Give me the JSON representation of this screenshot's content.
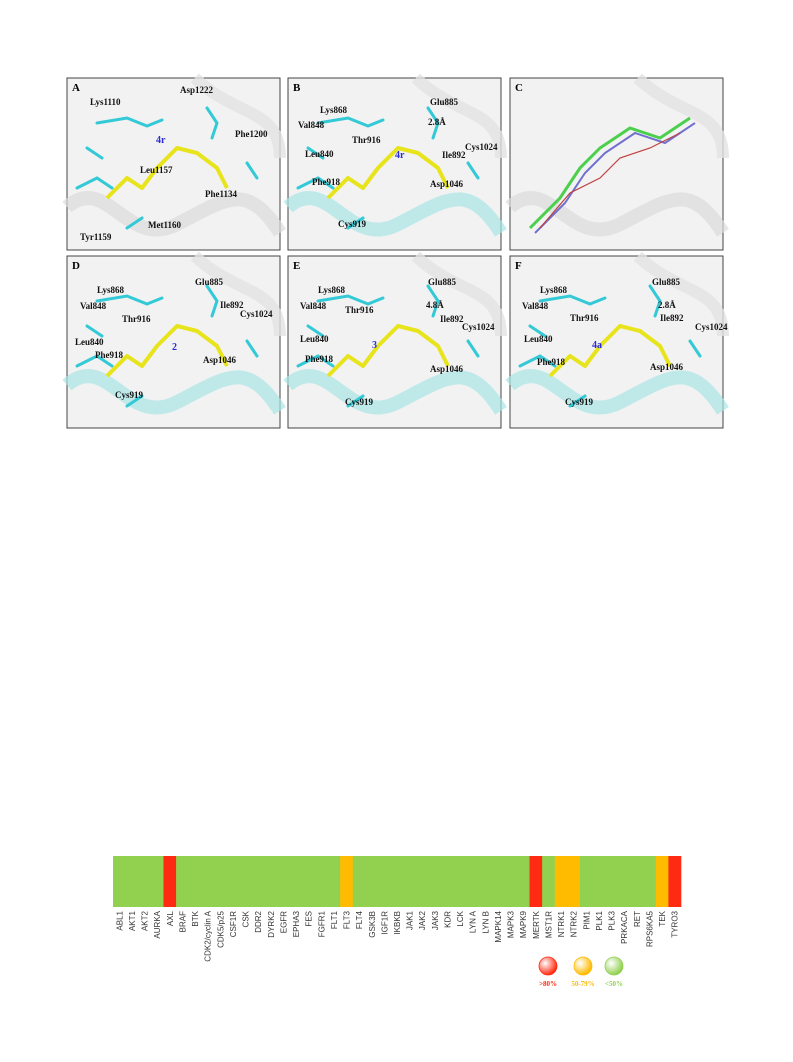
{
  "panels": [
    {
      "letter": "A",
      "ligand": "4r",
      "labels": [
        "Lys1110",
        "Asp1222",
        "Phe1200",
        "Leu1157",
        "Phe1134",
        "Tyr1159",
        "Met1160"
      ]
    },
    {
      "letter": "B",
      "ligand": "4r",
      "labels": [
        "Glu885",
        "Lys868",
        "Val848",
        "2.8Å",
        "Thr916",
        "Leu840",
        "Ile892",
        "Cys1024",
        "Phe918",
        "Asp1046",
        "Cys919"
      ]
    },
    {
      "letter": "C",
      "ligand": null,
      "labels": []
    },
    {
      "letter": "D",
      "ligand": "2",
      "labels": [
        "Glu885",
        "Lys868",
        "Val848",
        "Ile892",
        "Thr916",
        "Cys1024",
        "Leu840",
        "Phe918",
        "Asp1046",
        "Cys919"
      ]
    },
    {
      "letter": "E",
      "ligand": "3",
      "labels": [
        "Glu885",
        "Lys868",
        "Val848",
        "Thr916",
        "4.8Å",
        "Ile892",
        "Cys1024",
        "Leu840",
        "Phe918",
        "Asp1046",
        "Cys919"
      ]
    },
    {
      "letter": "F",
      "ligand": "4a",
      "labels": [
        "Glu885",
        "Lys868",
        "2.8Å",
        "Val848",
        "Thr916",
        "Ile892",
        "Cys1024",
        "Leu840",
        "Phe918",
        "Asp1046",
        "Cys919"
      ]
    }
  ],
  "heatmap": {
    "kinases": [
      "ABL1",
      "AKT1",
      "AKT2",
      "AURKA",
      "AXL",
      "BRAF",
      "BTK",
      "CDK2/cyclin A",
      "CDK5/p25",
      "CSF1R",
      "CSK",
      "DDR2",
      "DYRK2",
      "EGFR",
      "EPHA3",
      "FES",
      "FGFR1",
      "FLT1",
      "FLT3",
      "FLT4",
      "GSK3B",
      "IGF1R",
      "IKBKB",
      "JAK1",
      "JAK2",
      "JAK3",
      "KDR",
      "LCK",
      "LYN A",
      "LYN B",
      "MAPK14",
      "MAPK3",
      "MAPK9",
      "MERTK",
      "MST1R",
      "NTRK1",
      "NTRK2",
      "PIM1",
      "PLK1",
      "PLK3",
      "PRKACA",
      "RET",
      "RPS6KA5",
      "TEK",
      "TYRO3"
    ],
    "inhibition": [
      "<50%",
      "<50%",
      "<50%",
      "<50%",
      ">80%",
      "<50%",
      "<50%",
      "<50%",
      "<50%",
      "<50%",
      "<50%",
      "<50%",
      "<50%",
      "<50%",
      "<50%",
      "<50%",
      "<50%",
      "<50%",
      "50-79%",
      "<50%",
      "<50%",
      "<50%",
      "<50%",
      "<50%",
      "<50%",
      "<50%",
      "<50%",
      "<50%",
      "<50%",
      "<50%",
      "<50%",
      "<50%",
      "<50%",
      ">80%",
      "<50%",
      "50-79%",
      "50-79%",
      "<50%",
      "<50%",
      "<50%",
      "<50%",
      "<50%",
      "<50%",
      "50-79%",
      ">80%"
    ],
    "legend": [
      {
        "label": ">80%",
        "color": "#ff2a12"
      },
      {
        "label": "50-79%",
        "color": "#ffbb00"
      },
      {
        "label": "<50%",
        "color": "#92d050"
      }
    ]
  }
}
